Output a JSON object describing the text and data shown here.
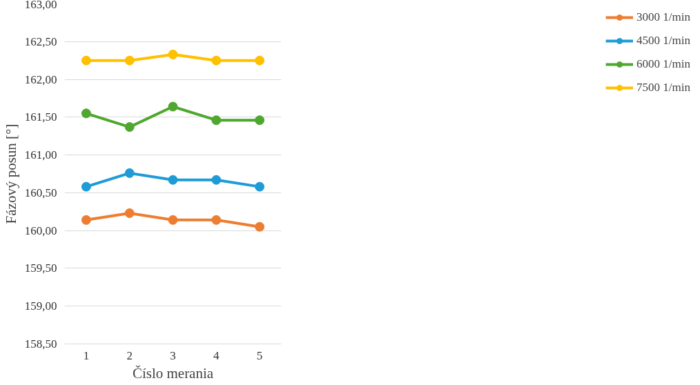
{
  "chart_data": {
    "type": "line",
    "xlabel": "Číslo merania",
    "ylabel": "Fázový posun [°]",
    "categories": [
      "1",
      "2",
      "3",
      "4",
      "5"
    ],
    "series": [
      {
        "name": "3000 1/min",
        "color": "#ed7d31",
        "values": [
          160.14,
          160.23,
          160.14,
          160.14,
          160.05
        ]
      },
      {
        "name": "4500 1/min",
        "color": "#1f9bd7",
        "values": [
          160.58,
          160.76,
          160.67,
          160.67,
          160.58
        ]
      },
      {
        "name": "6000 1/min",
        "color": "#4ea72e",
        "values": [
          161.55,
          161.37,
          161.64,
          161.46,
          161.46
        ]
      },
      {
        "name": "7500 1/min",
        "color": "#ffc000",
        "values": [
          162.25,
          162.25,
          162.33,
          162.25,
          162.25
        ]
      }
    ],
    "ylim": [
      158.5,
      163
    ],
    "yticks": [
      {
        "value": 158.5,
        "label": "158,50"
      },
      {
        "value": 159,
        "label": "159,00"
      },
      {
        "value": 159.5,
        "label": "159,50"
      },
      {
        "value": 160,
        "label": "160,00"
      },
      {
        "value": 160.5,
        "label": "160,50"
      },
      {
        "value": 161,
        "label": "161,00"
      },
      {
        "value": 161.5,
        "label": "161,50"
      },
      {
        "value": 162,
        "label": "162,00"
      },
      {
        "value": 162.5,
        "label": "162,50"
      },
      {
        "value": 163,
        "label": "163,00"
      }
    ],
    "grid": "y",
    "legend": "right",
    "marker": "circle",
    "line_style": "solid"
  }
}
